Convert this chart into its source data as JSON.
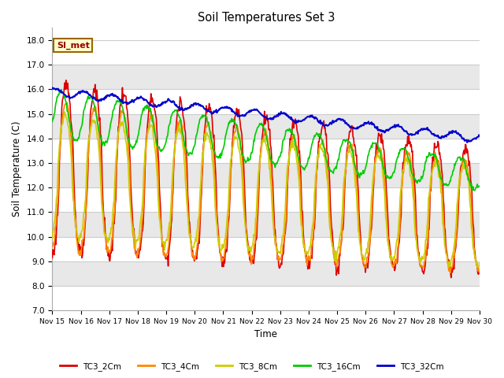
{
  "title": "Soil Temperatures Set 3",
  "xlabel": "Time",
  "ylabel": "Soil Temperature (C)",
  "ylim": [
    7.0,
    18.5
  ],
  "yticks": [
    7.0,
    8.0,
    9.0,
    10.0,
    11.0,
    12.0,
    13.0,
    14.0,
    15.0,
    16.0,
    17.0,
    18.0
  ],
  "xtick_labels": [
    "Nov 15",
    "Nov 16",
    "Nov 17",
    "Nov 18",
    "Nov 19",
    "Nov 20",
    "Nov 21",
    "Nov 22",
    "Nov 23",
    "Nov 24",
    "Nov 25",
    "Nov 26",
    "Nov 27",
    "Nov 28",
    "Nov 29",
    "Nov 30"
  ],
  "fig_bg_color": "#ffffff",
  "plot_bg_color": "#ffffff",
  "grid_color": "#cccccc",
  "band_color": "#e8e8e8",
  "annotation_text": "SI_met",
  "annotation_bg": "#ffffcc",
  "annotation_border": "#996600",
  "legend_entries": [
    "TC3_2Cm",
    "TC3_4Cm",
    "TC3_8Cm",
    "TC3_16Cm",
    "TC3_32Cm"
  ],
  "line_colors": [
    "#dd0000",
    "#ff8800",
    "#cccc00",
    "#00cc00",
    "#0000cc"
  ],
  "num_days": 15,
  "points_per_day": 48
}
